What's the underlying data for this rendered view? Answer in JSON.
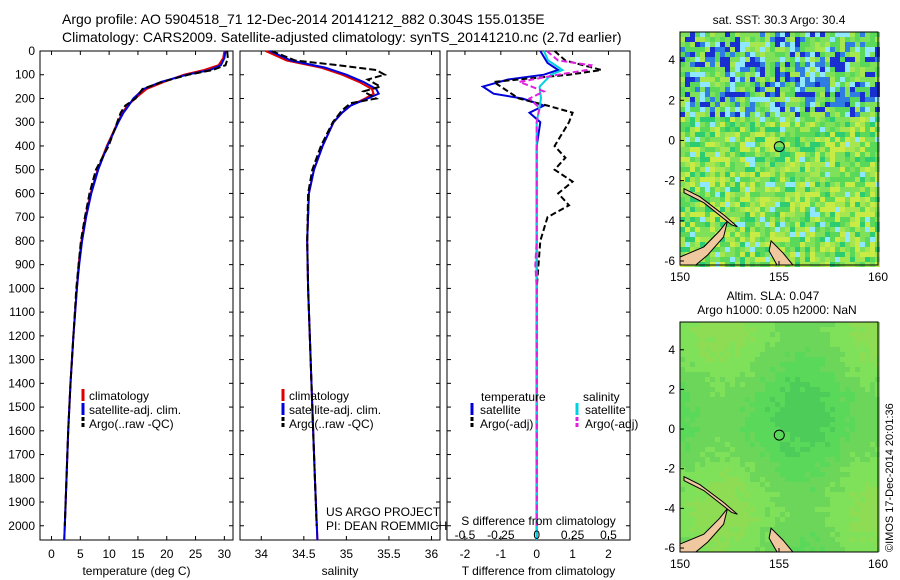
{
  "title": {
    "line1": "Argo profile: AO 5904518_71 12-Dec-2014 20141212_882 0.304S 155.0135E",
    "line2": "Climatology: CARS2009. Satellite-adjusted climatology: synTS_20141210.nc (2.7d earlier)"
  },
  "colors": {
    "climatology": "#e00000",
    "satellite": "#0000dd",
    "argo": "#000000",
    "satellite_salinity": "#00d0e0",
    "argo_salinity": "#e020e0",
    "land": "#f0c8a0"
  },
  "chart_data": [
    {
      "id": "temperature",
      "type": "line",
      "xlabel": "temperature (deg C)",
      "ylabel": "",
      "xlim": [
        -2,
        31.5
      ],
      "ylim": [
        0,
        2060
      ],
      "xticks": [
        0,
        5,
        10,
        15,
        20,
        25,
        30
      ],
      "yticks": [
        0,
        100,
        200,
        300,
        400,
        500,
        600,
        700,
        800,
        900,
        1000,
        1100,
        1200,
        1300,
        1400,
        1500,
        1600,
        1700,
        1800,
        1900,
        2000
      ],
      "legend": [
        "climatology",
        "satellite-adj. clim.",
        "Argo(..raw -QC)"
      ],
      "series": [
        {
          "name": "climatology",
          "depth": [
            0,
            30,
            60,
            80,
            100,
            130,
            160,
            200,
            230,
            260,
            300,
            400,
            500,
            600,
            700,
            800,
            900,
            1000,
            1200,
            1400,
            1600,
            1800,
            2000,
            2060
          ],
          "values": [
            30.0,
            29.8,
            29.0,
            26.5,
            23.0,
            19.5,
            16.5,
            14.5,
            13.2,
            12.3,
            11.5,
            9.6,
            8.0,
            6.8,
            5.9,
            5.2,
            4.7,
            4.4,
            3.8,
            3.3,
            2.9,
            2.6,
            2.3,
            2.2
          ]
        },
        {
          "name": "satellite-adj. clim.",
          "depth": [
            0,
            30,
            60,
            80,
            100,
            130,
            160,
            200,
            230,
            260,
            300,
            400,
            500,
            600,
            700,
            800,
            900,
            1000,
            1200,
            1400,
            1600,
            1800,
            2000,
            2060
          ],
          "values": [
            30.2,
            30.0,
            29.4,
            27.5,
            23.5,
            19.0,
            16.0,
            14.2,
            13.4,
            12.5,
            11.6,
            9.7,
            8.1,
            6.9,
            6.0,
            5.3,
            4.8,
            4.4,
            3.8,
            3.3,
            2.9,
            2.6,
            2.3,
            2.2
          ]
        },
        {
          "name": "Argo(..raw -QC)",
          "depth": [
            0,
            30,
            60,
            80,
            100,
            130,
            160,
            200,
            230,
            260,
            300,
            400,
            500,
            600,
            700,
            800,
            900,
            1000,
            1200,
            1400,
            1600,
            1800,
            2000
          ],
          "values": [
            30.5,
            30.6,
            30.2,
            28.0,
            23.8,
            19.2,
            15.8,
            14.6,
            12.8,
            12.0,
            11.4,
            9.9,
            7.7,
            6.6,
            5.8,
            5.1,
            4.7,
            4.3,
            3.8,
            3.3,
            2.9,
            2.6,
            2.3
          ]
        }
      ]
    },
    {
      "id": "salinity",
      "type": "line",
      "xlabel": "salinity",
      "xlim": [
        33.75,
        36.1
      ],
      "ylim": [
        0,
        2060
      ],
      "xticks": [
        34,
        34.5,
        35,
        35.5,
        36
      ],
      "xticklabels": [
        "34",
        "34.5",
        "35",
        "35.5",
        "36"
      ],
      "legend": [
        "climatology",
        "satellite-adj. clim.",
        "Argo(..raw -QC)"
      ],
      "annotation": [
        "US ARGO PROJECT",
        "PI: DEAN ROEMMICH"
      ],
      "series": [
        {
          "name": "climatology",
          "depth": [
            0,
            40,
            70,
            100,
            130,
            160,
            180,
            200,
            230,
            260,
            300,
            400,
            500,
            600,
            800,
            1000,
            1200,
            1500,
            1800,
            2060
          ],
          "values": [
            34.05,
            34.3,
            34.7,
            34.95,
            35.15,
            35.3,
            35.32,
            35.22,
            35.05,
            34.95,
            34.85,
            34.72,
            34.62,
            34.56,
            34.54,
            34.55,
            34.57,
            34.6,
            34.63,
            34.66
          ]
        },
        {
          "name": "satellite-adj. clim.",
          "depth": [
            0,
            40,
            70,
            100,
            130,
            160,
            180,
            200,
            230,
            260,
            300,
            400,
            500,
            600,
            800,
            1000,
            1200,
            1500,
            1800,
            2060
          ],
          "values": [
            34.1,
            34.35,
            34.75,
            35.0,
            35.2,
            35.35,
            35.38,
            35.25,
            35.05,
            34.95,
            34.85,
            34.72,
            34.62,
            34.56,
            34.54,
            34.55,
            34.57,
            34.6,
            34.63,
            34.66
          ]
        },
        {
          "name": "Argo(..raw -QC)",
          "depth": [
            0,
            40,
            60,
            80,
            100,
            120,
            150,
            170,
            200,
            220,
            250,
            300,
            400,
            500,
            600,
            800,
            1000,
            1200,
            1500,
            1800,
            2000
          ],
          "values": [
            34.12,
            34.4,
            34.9,
            35.35,
            35.45,
            35.25,
            35.4,
            35.2,
            35.35,
            35.05,
            34.95,
            34.84,
            34.7,
            34.6,
            34.55,
            34.54,
            34.55,
            34.57,
            34.6,
            34.63,
            34.65
          ]
        }
      ]
    },
    {
      "id": "differences",
      "type": "line",
      "xlabel": "T difference from climatology",
      "xlabel_top": "S difference from climatology",
      "xlim": [
        -2.5,
        2.6
      ],
      "ylim": [
        0,
        2060
      ],
      "xticks": [
        -2,
        -1,
        0,
        1,
        2
      ],
      "s_ticks": [
        -0.5,
        -0.25,
        0,
        0.25,
        0.5
      ],
      "s_ticklabels": [
        "-0.5",
        "-0.25",
        "0",
        "0.25",
        "0.5"
      ],
      "legend_headers": [
        "temperature",
        "salinity"
      ],
      "legend": [
        "satellite",
        "Argo(-adj)",
        "satellite",
        "Argo(-adj)"
      ],
      "series": [
        {
          "name": "temperature satellite",
          "depth": [
            0,
            50,
            80,
            100,
            120,
            150,
            180,
            200,
            230,
            260,
            300,
            400,
            600,
            1000,
            2060
          ],
          "values": [
            0.1,
            0.3,
            0.6,
            0.2,
            -0.8,
            -1.5,
            -1.2,
            -0.4,
            0.2,
            -0.2,
            0.1,
            0.0,
            0.0,
            0.0,
            0.0
          ]
        },
        {
          "name": "temperature Argo(-adj)",
          "depth": [
            0,
            40,
            80,
            100,
            130,
            160,
            200,
            230,
            260,
            300,
            350,
            400,
            450,
            500,
            550,
            600,
            650,
            700,
            800,
            1000,
            2000
          ],
          "values": [
            0.5,
            0.8,
            1.8,
            0.9,
            -1.2,
            -0.9,
            -0.5,
            0.3,
            1.0,
            0.9,
            0.7,
            0.5,
            0.8,
            0.5,
            1.0,
            0.6,
            0.9,
            0.3,
            0.1,
            0.0,
            0.0
          ]
        },
        {
          "name": "salinity satellite",
          "depth": [
            0,
            40,
            80,
            100,
            150,
            200,
            300,
            400,
            600,
            1000,
            2060
          ],
          "values": [
            0.05,
            0.08,
            0.18,
            0.1,
            0.02,
            0.03,
            0.0,
            0.0,
            0.0,
            0.0,
            0.0
          ]
        },
        {
          "name": "salinity Argo(-adj)",
          "depth": [
            0,
            40,
            60,
            80,
            100,
            130,
            170,
            200,
            240,
            300,
            400,
            600,
            800,
            900,
            1000,
            2000
          ],
          "values": [
            0.07,
            0.15,
            0.38,
            0.35,
            0.15,
            -0.12,
            0.05,
            -0.05,
            0.02,
            0.0,
            0.0,
            0.0,
            0.0,
            -0.01,
            0.0,
            0.0
          ]
        }
      ]
    },
    {
      "id": "sst_map",
      "type": "heatmap",
      "title": "sat. SST: 30.3 Argo: 30.4",
      "xlim": [
        150,
        160
      ],
      "ylim": [
        -6.2,
        5.4
      ],
      "xticks": [
        150,
        155,
        160
      ],
      "yticks": [
        -6,
        -4,
        -2,
        0,
        2,
        4
      ],
      "argo_position": {
        "lon": 155.0135,
        "lat": -0.304
      }
    },
    {
      "id": "sla_map",
      "type": "heatmap",
      "title": "Altim. SLA: 0.047",
      "subtitle": "Argo h1000: 0.05 h2000: NaN",
      "xlim": [
        150,
        160
      ],
      "ylim": [
        -6.2,
        5.4
      ],
      "xticks": [
        150,
        155,
        160
      ],
      "yticks": [
        -6,
        -4,
        -2,
        0,
        2,
        4
      ],
      "argo_position": {
        "lon": 155.0135,
        "lat": -0.304
      }
    }
  ],
  "credit": "©IMOS 17-Dec-2014 20:01:36"
}
